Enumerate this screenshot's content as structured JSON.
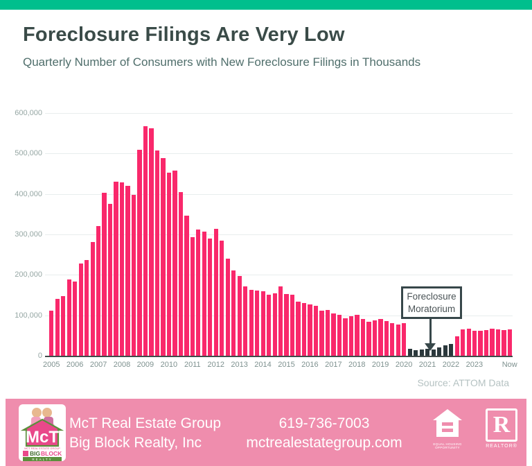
{
  "page": {
    "title": "Foreclosure Filings Are Very Low",
    "subtitle": "Quarterly Number of Consumers with New Foreclosure Filings in Thousands"
  },
  "chart_data": {
    "type": "bar",
    "title": "Foreclosure Filings Are Very Low",
    "subtitle": "Quarterly Number of Consumers with New Foreclosure Filings in Thousands",
    "source": "Source: ATTOM Data",
    "ylim": [
      0,
      600000
    ],
    "grid": "horizontal",
    "y_axis": {
      "ticks": [
        {
          "label": "600,000",
          "value": 600000
        },
        {
          "label": "500,000",
          "value": 500000
        },
        {
          "label": "400,000",
          "value": 400000
        },
        {
          "label": "300,000",
          "value": 300000
        },
        {
          "label": "200,000",
          "value": 200000
        },
        {
          "label": "100,000",
          "value": 100000
        },
        {
          "label": "0",
          "value": 0
        }
      ]
    },
    "x_ticks": [
      "2005",
      "2006",
      "2007",
      "2008",
      "2009",
      "2010",
      "2011",
      "2012",
      "2013",
      "2014",
      "2015",
      "2016",
      "2017",
      "2018",
      "2019",
      "2020",
      "2021",
      "2022",
      "2023",
      "Now"
    ],
    "start_year": 2005,
    "quarters_per_year": 4,
    "values": [
      111000,
      140000,
      147000,
      188000,
      184000,
      228000,
      236000,
      281000,
      320000,
      403000,
      375000,
      430000,
      428000,
      420000,
      398000,
      510000,
      567000,
      562000,
      507000,
      488000,
      453000,
      457000,
      405000,
      347000,
      294000,
      312000,
      307000,
      289000,
      313000,
      284000,
      240000,
      211000,
      198000,
      172000,
      163000,
      162000,
      160000,
      151000,
      154000,
      171000,
      153000,
      151000,
      134000,
      131000,
      127000,
      123000,
      111000,
      113000,
      105000,
      101000,
      92000,
      97000,
      101000,
      91000,
      84000,
      88000,
      91000,
      85000,
      80000,
      78000,
      80000,
      18000,
      13000,
      15000,
      17000,
      16000,
      20000,
      25000,
      30000,
      48000,
      65000,
      67000,
      62000,
      61000,
      64000,
      67000,
      66000,
      64000,
      65000
    ],
    "moratorium": {
      "start_index": 61,
      "end_index": 68,
      "label_line1": "Foreclosure",
      "label_line2": "Moratorium"
    },
    "colors": {
      "bar": "#F9286B",
      "moratorium_bar": "#2B383C",
      "topbar_green": "#00BF8D",
      "footer_pink": "#EF8DAD"
    }
  },
  "footer": {
    "company_line1": "McT Real Estate Group",
    "company_line2": "Big Block Realty, Inc",
    "phone": "619-736-7003",
    "website": "mctrealestategroup.com",
    "eho_caption_line1": "EQUAL HOUSING",
    "eho_caption_line2": "OPPORTUNITY",
    "realtor_letter": "R",
    "realtor_caption": "REALTOR®",
    "logo": {
      "mct": "McT",
      "tagline": "MCT REAL ESTATE GROUP",
      "big": "BIG",
      "block": "BLOCK",
      "realty": "R E A L T Y"
    }
  }
}
